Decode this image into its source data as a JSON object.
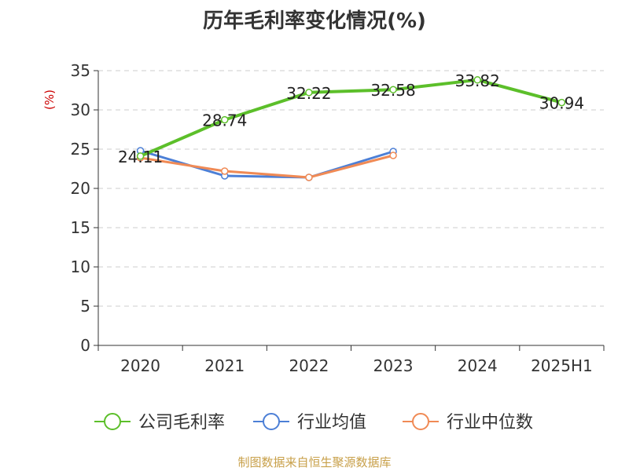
{
  "colors": {
    "company": "#5cbf2a",
    "industry_avg": "#4c7fd6",
    "industry_median": "#f08a55",
    "axis": "#333333",
    "grid": "#cccccc",
    "ylabel": "#cc0000",
    "source": "#c8a04a"
  },
  "footer": {
    "source": "制图数据来自恒生聚源数据库"
  },
  "chart_data": {
    "type": "line",
    "title": "历年毛利率变化情况(%)",
    "ylabel": "(%)",
    "categories": [
      "2020",
      "2021",
      "2022",
      "2023",
      "2024",
      "2025H1"
    ],
    "ylim": [
      0,
      35
    ],
    "yticks": [
      0,
      5,
      10,
      15,
      20,
      25,
      30,
      35
    ],
    "grid": true,
    "legend_position": "bottom",
    "series": [
      {
        "name": "公司毛利率",
        "values": [
          24.11,
          28.74,
          32.22,
          32.58,
          33.82,
          30.94
        ],
        "labels": [
          "24.11",
          "28.74",
          "32.22",
          "32.58",
          "33.82",
          "30.94"
        ]
      },
      {
        "name": "行业均值",
        "values": [
          24.8,
          21.6,
          21.4,
          24.7,
          null,
          null
        ]
      },
      {
        "name": "行业中位数",
        "values": [
          23.9,
          22.2,
          21.4,
          24.2,
          null,
          null
        ]
      }
    ]
  }
}
